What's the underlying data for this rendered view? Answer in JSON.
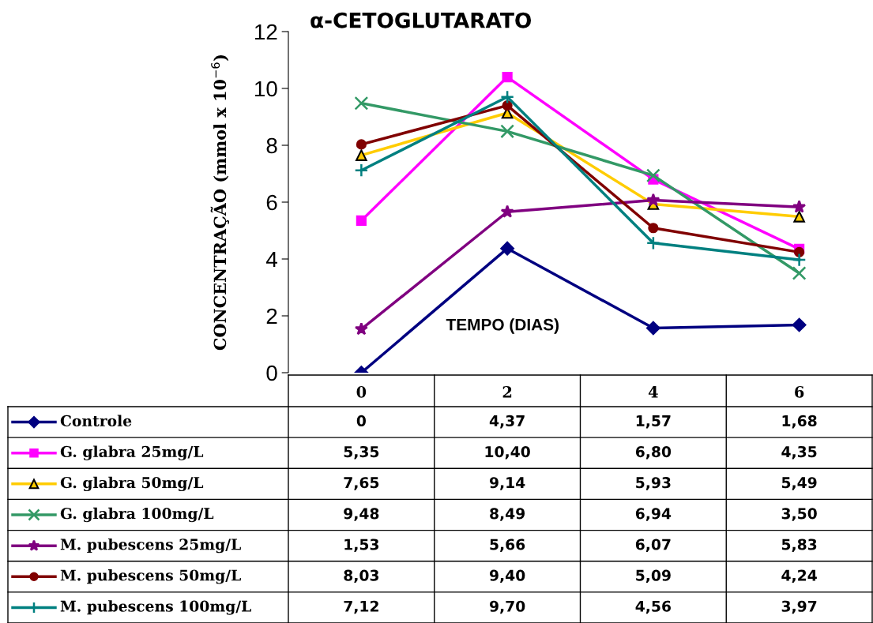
{
  "chart_data": {
    "type": "line",
    "title": "α-CETOGLUTARATO",
    "xlabel": "TEMPO (DIAS)",
    "ylabel": "CONCENTRAÇÃO (mmol x 10$^{−6}$)",
    "categories": [
      "0",
      "2",
      "4",
      "6"
    ],
    "ylim": [
      0,
      12
    ],
    "yticks": [
      0,
      2,
      4,
      6,
      8,
      10,
      12
    ],
    "grid": false,
    "legend": "bottom",
    "series": [
      {
        "name": "Controle",
        "color": "#000080",
        "marker": "diamond",
        "values": [
          0,
          4.37,
          1.57,
          1.68
        ],
        "value_labels": [
          "0",
          "4,37",
          "1,57",
          "1,68"
        ]
      },
      {
        "name": "G. glabra 25mg/L",
        "color": "#ff00ff",
        "marker": "square",
        "values": [
          5.35,
          10.4,
          6.8,
          4.35
        ],
        "value_labels": [
          "5,35",
          "10,40",
          "6,80",
          "4,35"
        ]
      },
      {
        "name": "G. glabra 50mg/L",
        "color": "#ffcc00",
        "marker": "triangle",
        "values": [
          7.65,
          9.14,
          5.93,
          5.49
        ],
        "value_labels": [
          "7,65",
          "9,14",
          "5,93",
          "5,49"
        ]
      },
      {
        "name": "G. glabra 100mg/L",
        "color": "#339966",
        "marker": "cross",
        "values": [
          9.48,
          8.49,
          6.94,
          3.5
        ],
        "value_labels": [
          "9,48",
          "8,49",
          "6,94",
          "3,50"
        ]
      },
      {
        "name": "M. pubescens 25mg/L",
        "color": "#800080",
        "marker": "star",
        "values": [
          1.53,
          5.66,
          6.07,
          5.83
        ],
        "value_labels": [
          "1,53",
          "5,66",
          "6,07",
          "5,83"
        ]
      },
      {
        "name": "M. pubescens 50mg/L",
        "color": "#800000",
        "marker": "circle",
        "values": [
          8.03,
          9.4,
          5.09,
          4.24
        ],
        "value_labels": [
          "8,03",
          "9,40",
          "5,09",
          "4,24"
        ]
      },
      {
        "name": "M. pubescens 100mg/L",
        "color": "#008080",
        "marker": "plus",
        "values": [
          7.12,
          9.7,
          4.56,
          3.97
        ],
        "value_labels": [
          "7,12",
          "9,70",
          "4,56",
          "3,97"
        ]
      }
    ]
  }
}
